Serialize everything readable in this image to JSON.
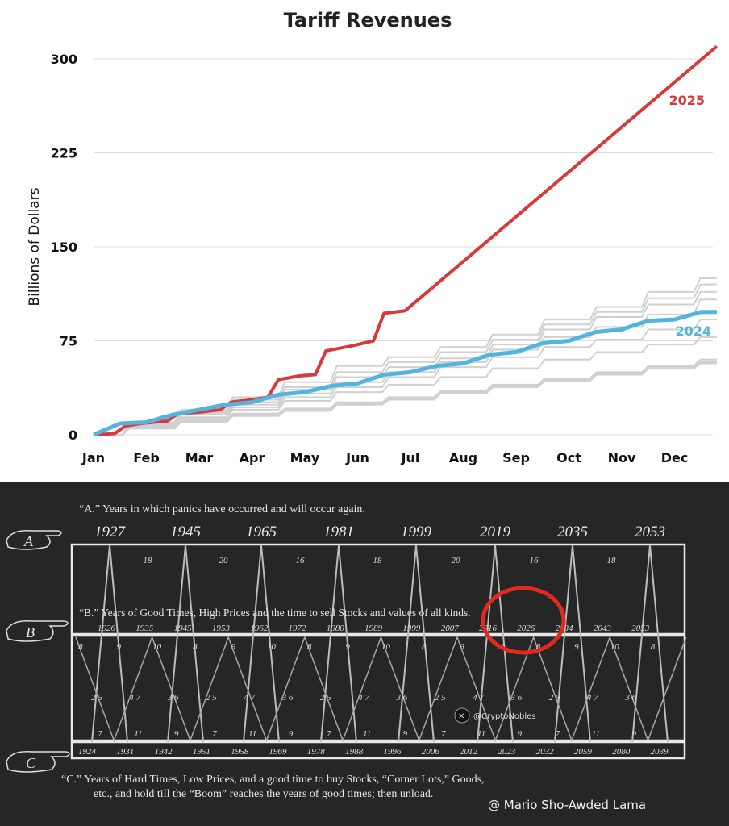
{
  "chart_data": {
    "type": "line",
    "title": "Tariff Revenues",
    "ylabel": "Billions of Dollars",
    "xlabel": "",
    "ylim": [
      0,
      300
    ],
    "yticks": [
      0,
      75,
      150,
      225,
      300
    ],
    "categories": [
      "Jan",
      "Feb",
      "Mar",
      "Apr",
      "May",
      "Jun",
      "Jul",
      "Aug",
      "Sep",
      "Oct",
      "Nov",
      "Dec"
    ],
    "grid": true,
    "series": [
      {
        "name": "2025",
        "color": "#d83a3a",
        "points": [
          [
            0,
            0
          ],
          [
            0.4,
            1
          ],
          [
            0.6,
            7
          ],
          [
            0.9,
            9
          ],
          [
            1.4,
            11
          ],
          [
            1.6,
            17
          ],
          [
            2.0,
            18
          ],
          [
            2.4,
            20
          ],
          [
            2.6,
            26
          ],
          [
            3.0,
            28
          ],
          [
            3.3,
            30
          ],
          [
            3.5,
            44
          ],
          [
            3.9,
            47
          ],
          [
            4.2,
            48
          ],
          [
            4.4,
            67
          ],
          [
            4.9,
            71
          ],
          [
            5.3,
            75
          ],
          [
            5.5,
            97
          ],
          [
            5.9,
            99
          ],
          [
            11.8,
            310
          ]
        ]
      },
      {
        "name": "2024",
        "color": "#55b4df",
        "points": [
          [
            0,
            0
          ],
          [
            0.5,
            9
          ],
          [
            1.0,
            10
          ],
          [
            1.5,
            16
          ],
          [
            2.0,
            20
          ],
          [
            2.5,
            24
          ],
          [
            3.0,
            26
          ],
          [
            3.5,
            32
          ],
          [
            4.0,
            34
          ],
          [
            4.5,
            39
          ],
          [
            5.0,
            41
          ],
          [
            5.5,
            48
          ],
          [
            6.0,
            50
          ],
          [
            6.5,
            55
          ],
          [
            7.0,
            57
          ],
          [
            7.5,
            64
          ],
          [
            8.0,
            66
          ],
          [
            8.5,
            73
          ],
          [
            9.0,
            75
          ],
          [
            9.5,
            82
          ],
          [
            10.0,
            84
          ],
          [
            10.5,
            91
          ],
          [
            11.0,
            92
          ],
          [
            11.5,
            98
          ],
          [
            11.8,
            98
          ]
        ]
      }
    ],
    "background_series": [
      {
        "values": [
          0,
          10,
          20,
          30,
          42,
          55,
          62,
          70,
          80,
          92,
          102,
          114,
          125
        ]
      },
      {
        "values": [
          0,
          9,
          18,
          28,
          38,
          50,
          58,
          66,
          76,
          88,
          98,
          109,
          120
        ]
      },
      {
        "values": [
          0,
          9,
          17,
          26,
          36,
          46,
          54,
          61,
          72,
          84,
          94,
          104,
          114
        ]
      },
      {
        "values": [
          0,
          8,
          16,
          24,
          33,
          42,
          50,
          58,
          68,
          78,
          86,
          96,
          108
        ]
      },
      {
        "values": [
          0,
          7,
          14,
          22,
          30,
          38,
          46,
          54,
          62,
          70,
          76,
          84,
          92
        ]
      },
      {
        "values": [
          0,
          7,
          13,
          20,
          27,
          34,
          40,
          46,
          53,
          60,
          66,
          72,
          78
        ]
      },
      {
        "values": [
          0,
          6,
          12,
          17,
          21,
          26,
          30,
          35,
          40,
          45,
          50,
          55,
          60
        ]
      },
      {
        "values": [
          0,
          6,
          11,
          16,
          20,
          25,
          29,
          34,
          39,
          44,
          49,
          54,
          58
        ]
      },
      {
        "values": [
          0,
          5,
          10,
          15,
          19,
          24,
          28,
          33,
          38,
          43,
          48,
          53,
          57
        ]
      }
    ]
  },
  "chalkboard": {
    "line_a": "“A.” Years in which panics have occurred and will occur again.",
    "line_b": "“B.” Years of Good Times, High Prices and the time to sell Stocks and values of all kinds.",
    "line_c1": "“C.”    Years of Hard Times, Low Prices, and a good time to buy Stocks, “Corner Lots,” Goods,",
    "line_c2": "etc., and hold till the “Boom” reaches the years of good times; then unload.",
    "marker_a": "A",
    "marker_b": "B",
    "marker_c": "C",
    "panic_years": [
      "1927",
      "1945",
      "1965",
      "1981",
      "1999",
      "2019",
      "2035",
      "2053"
    ],
    "panic_gaps": [
      "18",
      "20",
      "16",
      "18",
      "20",
      "16",
      "18"
    ],
    "good_years": [
      "1926",
      "1935",
      "1945",
      "1953",
      "1962",
      "1972",
      "1980",
      "1989",
      "1999",
      "2007",
      "2016",
      "2026",
      "2034",
      "2043",
      "2053"
    ],
    "hard_years": [
      "1924",
      "1931",
      "1942",
      "1951",
      "1958",
      "1969",
      "1978",
      "1988",
      "1996",
      "2006",
      "2012",
      "2023",
      "2032",
      "2059",
      "2080",
      "2039"
    ],
    "mid_numbers": [
      "8",
      "9",
      "10",
      "8",
      "9",
      "10",
      "8",
      "9",
      "10",
      "8",
      "9",
      "10",
      "8",
      "9",
      "10",
      "8"
    ],
    "watermark": "@CryptoNobles",
    "credit": "@ Mario Sho-Awded Lama"
  }
}
